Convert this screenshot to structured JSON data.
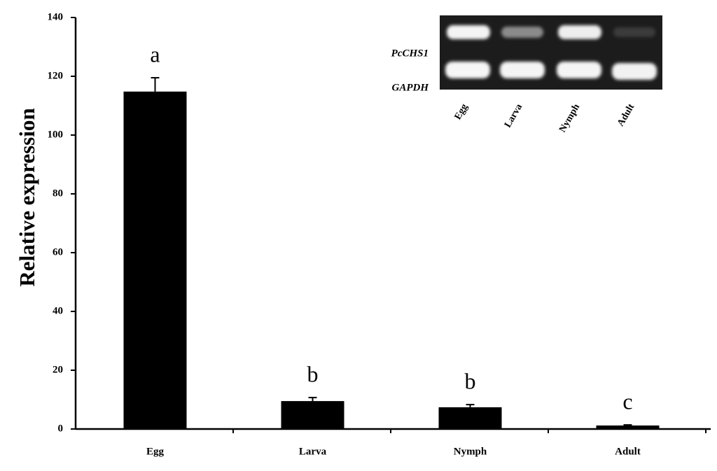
{
  "chart_data": {
    "type": "bar",
    "y_label": "Relative expression",
    "categories": [
      "Egg",
      "Larva",
      "Nymph",
      "Adult"
    ],
    "values": [
      114.8,
      9.5,
      7.4,
      1.2
    ],
    "errors": [
      4.7,
      1.2,
      0.9,
      0.2
    ],
    "significance": [
      "a",
      "b",
      "b",
      "c"
    ],
    "color": "#000000",
    "ylim": [
      0,
      140
    ],
    "yticks": [
      0,
      20,
      40,
      60,
      80,
      100,
      120,
      140
    ],
    "grid": false,
    "inset": {
      "gene_labels": [
        "PcCHS1",
        "GAPDH"
      ],
      "lanes": [
        "Egg",
        "Larva",
        "Nymph",
        "Adult"
      ]
    }
  }
}
